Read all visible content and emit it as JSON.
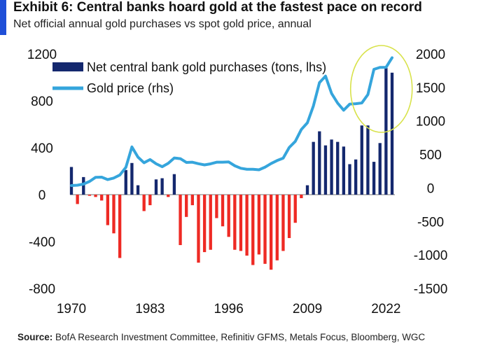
{
  "header": {
    "title": "Exhibit 6: Central banks hoard gold at the fastest pace on record",
    "subtitle": "Net official annual gold purchases vs spot gold price, annual"
  },
  "source": {
    "label": "Source:",
    "text": " BofA Research Investment Committee, Refinitiv GFMS, Metals Focus, Bloomberg, WGC"
  },
  "colors": {
    "accent": "#1f4fd8",
    "bar_positive": "#14286e",
    "bar_negative": "#ee2a24",
    "line": "#35a5dc",
    "highlight_circle": "#d8e24a"
  },
  "chart_data": {
    "type": "bar",
    "grid": false,
    "legend_position": "top-left",
    "x_ticks": [
      "1970",
      "1983",
      "1996",
      "2009",
      "2022"
    ],
    "left_axis": {
      "ylim": [
        -800,
        1200
      ],
      "ticks": [
        "1200",
        "800",
        "400",
        "0",
        "-400",
        "-800"
      ]
    },
    "right_axis": {
      "ylim": [
        -1500,
        2000
      ],
      "ticks": [
        "2000",
        "1500",
        "1000",
        "500",
        "0",
        "-500",
        "-1000",
        "-1500"
      ]
    },
    "highlight": {
      "type": "ellipse",
      "around_years": [
        2019,
        2023
      ]
    },
    "categories": [
      1970,
      1971,
      1972,
      1973,
      1974,
      1975,
      1976,
      1977,
      1978,
      1979,
      1980,
      1981,
      1982,
      1983,
      1984,
      1985,
      1986,
      1987,
      1988,
      1989,
      1990,
      1991,
      1992,
      1993,
      1994,
      1995,
      1996,
      1997,
      1998,
      1999,
      2000,
      2001,
      2002,
      2003,
      2004,
      2005,
      2006,
      2007,
      2008,
      2009,
      2010,
      2011,
      2012,
      2013,
      2014,
      2015,
      2016,
      2017,
      2018,
      2019,
      2020,
      2021,
      2022,
      2023
    ],
    "series": [
      {
        "name": "Net central bank gold purchases (tons, lhs)",
        "kind": "bar",
        "axis": "left",
        "values": [
          236,
          -80,
          150,
          -10,
          -20,
          -50,
          -260,
          -330,
          -540,
          210,
          270,
          80,
          -140,
          -90,
          130,
          140,
          -20,
          175,
          -430,
          -190,
          -90,
          -580,
          -490,
          -470,
          -200,
          -270,
          -360,
          -470,
          -480,
          -520,
          -600,
          -510,
          -590,
          -640,
          -560,
          -480,
          -370,
          -240,
          -30,
          80,
          450,
          540,
          420,
          470,
          450,
          410,
          260,
          300,
          590,
          590,
          280,
          440,
          1080,
          1040
        ]
      },
      {
        "name": "Gold price (rhs)",
        "kind": "line",
        "axis": "right",
        "values": [
          36,
          41,
          58,
          97,
          159,
          161,
          125,
          148,
          193,
          307,
          612,
          460,
          376,
          424,
          361,
          317,
          368,
          447,
          437,
          381,
          384,
          362,
          344,
          360,
          384,
          384,
          388,
          331,
          294,
          279,
          279,
          271,
          310,
          364,
          409,
          445,
          604,
          695,
          872,
          972,
          1225,
          1572,
          1669,
          1411,
          1266,
          1160,
          1251,
          1257,
          1268,
          1393,
          1770,
          1799,
          1800,
          1943
        ]
      }
    ]
  }
}
